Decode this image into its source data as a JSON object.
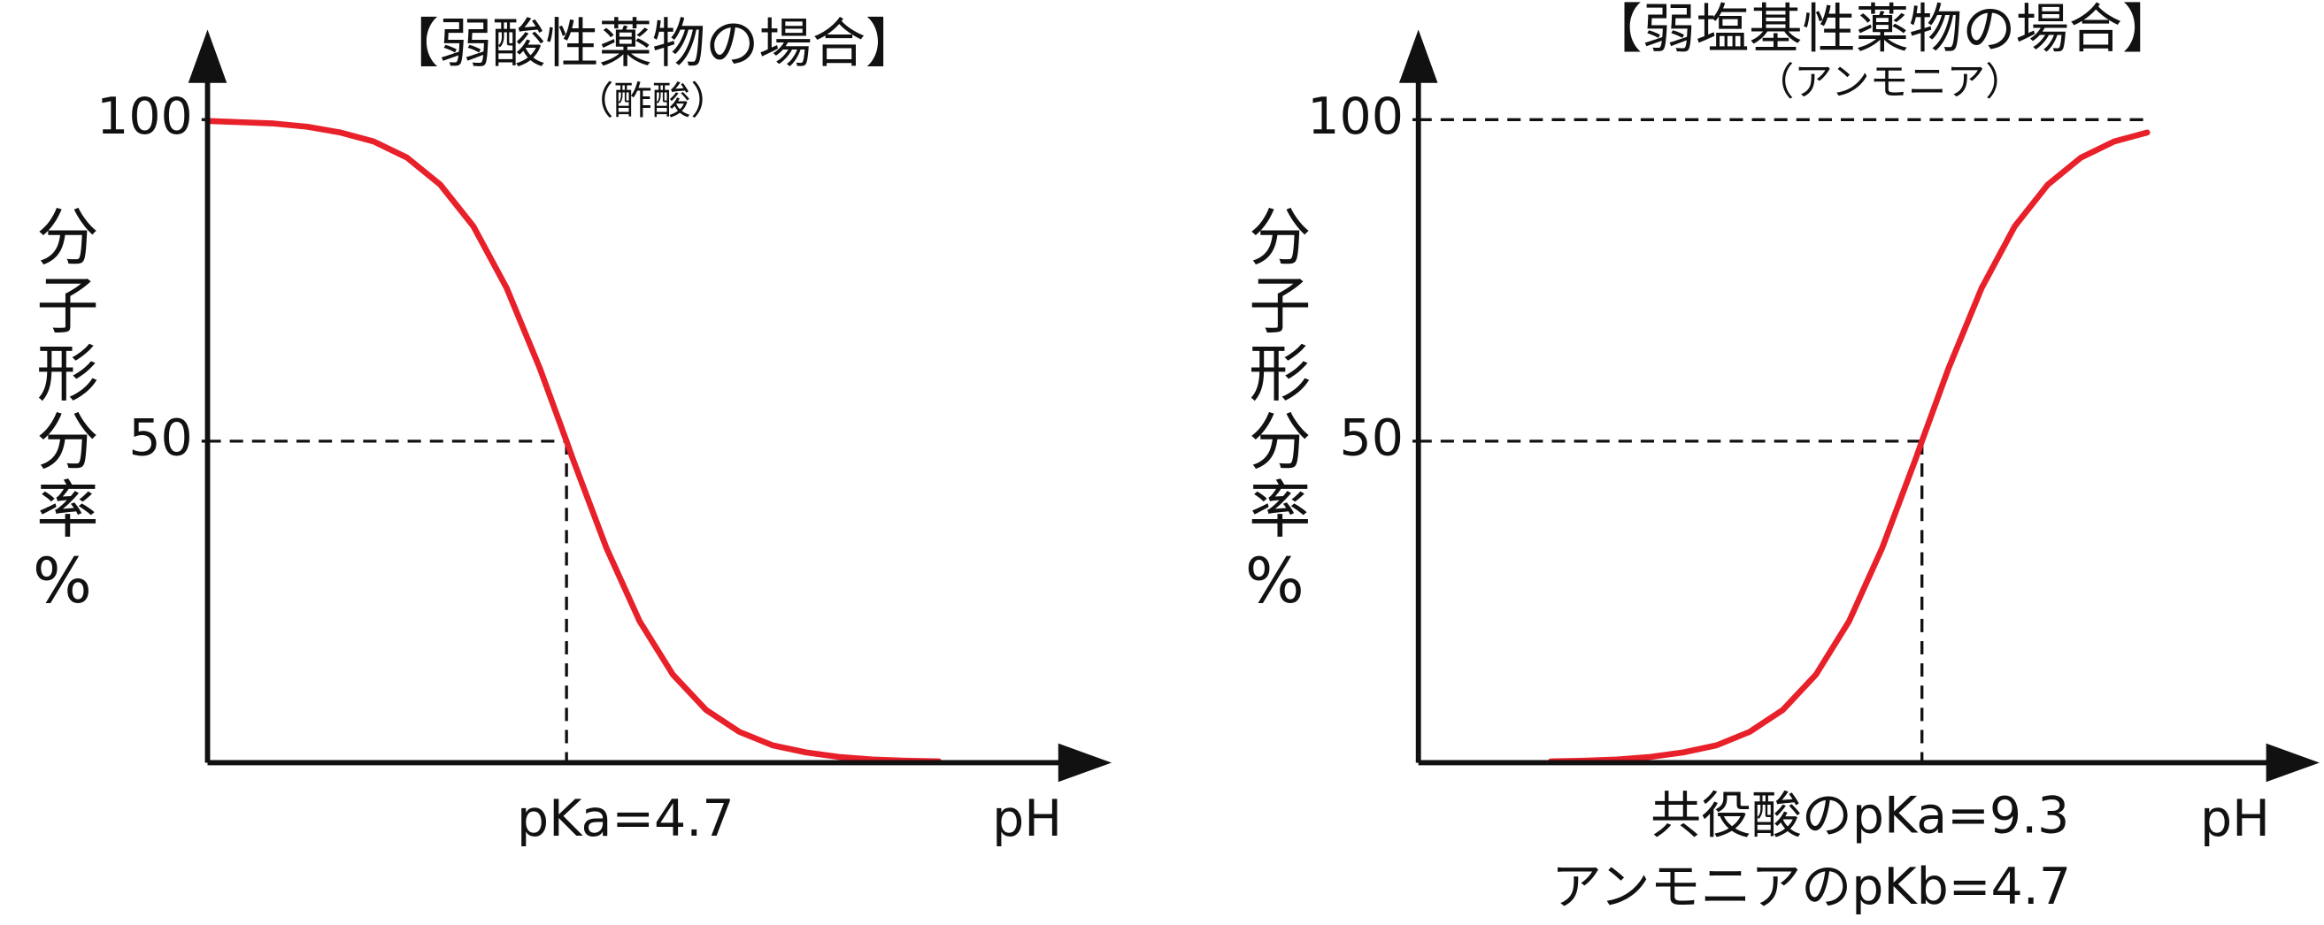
{
  "chart_data": [
    {
      "type": "line",
      "title": "【弱酸性薬物の場合】",
      "subtitle": "（酢酸）",
      "y_label": "分子形分率%",
      "x_label": "pH",
      "annotations": [
        "pKa=4.7"
      ],
      "x": [
        2,
        2.25,
        2.5,
        2.75,
        3,
        3.25,
        3.5,
        3.75,
        4,
        4.25,
        4.5,
        4.7,
        4.75,
        5,
        5.25,
        5.5,
        5.75,
        6,
        6.25,
        6.5,
        6.75,
        7,
        7.25,
        7.5
      ],
      "values": [
        99.8,
        99.6,
        99.4,
        98.9,
        98.0,
        96.6,
        94.1,
        89.9,
        83.4,
        73.8,
        61.3,
        50,
        47.1,
        33.4,
        22.0,
        13.7,
        8.2,
        4.8,
        2.7,
        1.6,
        0.9,
        0.5,
        0.3,
        0.2
      ],
      "color": "#e8202a",
      "xlim": [
        2,
        8.8
      ],
      "ylim": [
        0,
        114
      ],
      "yticks": [
        50,
        100
      ],
      "hlines": [
        50
      ],
      "vline": 4.7
    },
    {
      "type": "line",
      "title": "【弱塩基性薬物の場合】",
      "subtitle": "（アンモニア）",
      "y_label": "分子形分率%",
      "x_label": "pH",
      "annotations": [
        "共役酸のpKa=9.3",
        "アンモニアのpKb=4.7"
      ],
      "x": [
        6.5,
        6.75,
        7,
        7.25,
        7.5,
        7.75,
        8,
        8.25,
        8.5,
        8.75,
        9,
        9.25,
        9.3,
        9.5,
        9.75,
        10,
        10.25,
        10.5,
        10.75,
        11
      ],
      "values": [
        0.2,
        0.3,
        0.5,
        0.9,
        1.6,
        2.7,
        4.8,
        8.2,
        13.7,
        22.0,
        33.4,
        47.1,
        50,
        61.3,
        73.8,
        83.4,
        89.9,
        94.1,
        96.6,
        98.0
      ],
      "color": "#e8202a",
      "xlim": [
        5.5,
        12.3
      ],
      "ylim": [
        0,
        114
      ],
      "yticks": [
        50,
        100
      ],
      "hlines": [
        50,
        100
      ],
      "vline": 9.3
    }
  ]
}
